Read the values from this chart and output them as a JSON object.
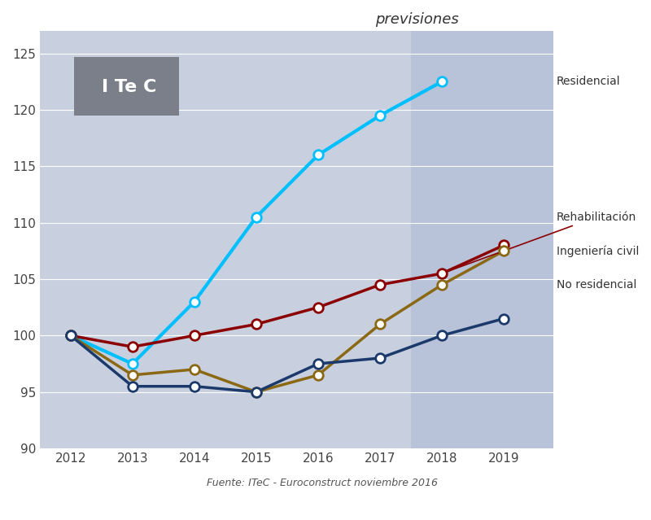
{
  "years": [
    2012,
    2013,
    2014,
    2015,
    2016,
    2017,
    2018,
    2019
  ],
  "residencial": [
    100,
    97.5,
    103,
    110.5,
    116,
    119.5,
    122.5,
    null
  ],
  "rehabilitacion": [
    100,
    99,
    100,
    101,
    102.5,
    104.5,
    105.5,
    108
  ],
  "ingenieria_civil": [
    100,
    96.5,
    97,
    95,
    96.5,
    101,
    104.5,
    107.5
  ],
  "no_residencial": [
    100,
    95.5,
    95.5,
    95,
    97.5,
    98,
    100,
    101.5
  ],
  "color_residencial": "#00BFFF",
  "color_rehabilitacion": "#8B0000",
  "color_ingenieria": "#8B6914",
  "color_no_residencial": "#1B3A6B",
  "bg_light": "#C8D0E0",
  "bg_previsiones": "#B8C2D8",
  "itec_box_color": "#7A7F8A",
  "forecast_start_year": 2017.5,
  "ylim": [
    90,
    127
  ],
  "yticks": [
    90,
    95,
    100,
    105,
    110,
    115,
    120,
    125
  ],
  "xlim": [
    2011.5,
    2019.8
  ],
  "xlabel_source": "Fuente: ITeC - Euroconstruct noviembre 2016",
  "label_residencial": "Residencial",
  "label_rehabilitacion": "Rehabilitación",
  "label_ingenieria": "Ingeniería civil",
  "label_no_residencial": "No residencial",
  "label_previsiones": "previsiones",
  "label_itec": "I Te C"
}
